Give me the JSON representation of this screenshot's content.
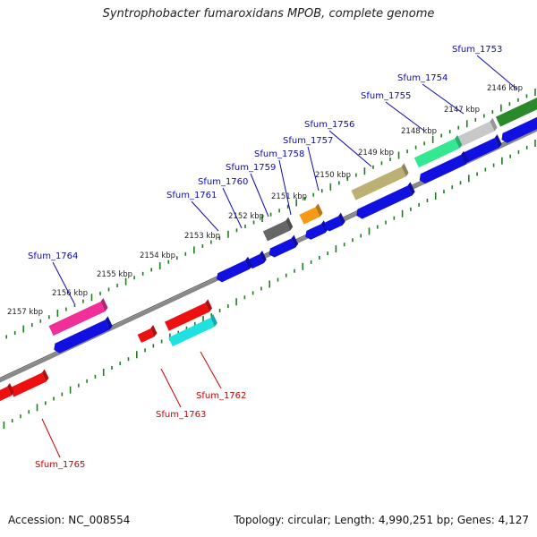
{
  "title": "Syntrophobacter fumaroxidans MPOB, complete genome",
  "footer": {
    "accession": "Accession: NC_008554",
    "summary": "Topology: circular; Length: 4,990,251 bp; Genes: 4,127"
  },
  "colors": {
    "forward_label": "#0a0ab4",
    "reverse_label": "#c80000",
    "tick": "#1e7d1e",
    "backbone": "#888888"
  },
  "scale_labels": [
    "2146 kbp",
    "2147 kbp",
    "2148 kbp",
    "2149 kbp",
    "2150 kbp",
    "2151 kbp",
    "2152 kbp",
    "2153 kbp",
    "2154 kbp",
    "2155 kbp",
    "2156 kbp",
    "2157 kbp"
  ],
  "forward_genes": [
    {
      "name": "Sfum_1753",
      "color": "#2a8a2a"
    },
    {
      "name": "Sfum_1754",
      "color": "#c8c8c8"
    },
    {
      "name": "Sfum_1755",
      "color": "#33e890"
    },
    {
      "name": "Sfum_1756",
      "color": "#bdb074"
    },
    {
      "name": "Sfum_1757",
      "color": "#f49a18"
    },
    {
      "name": "Sfum_1758",
      "color": "#666666"
    },
    {
      "name": "Sfum_1759",
      "color": "#666666"
    },
    {
      "name": "Sfum_1760",
      "color": "#666666"
    },
    {
      "name": "Sfum_1761",
      "color": "#666666"
    },
    {
      "name": "Sfum_1764",
      "color": "#f03098"
    }
  ],
  "reverse_genes": [
    {
      "name": "Sfum_1762",
      "color": "#20e0e0"
    },
    {
      "name": "Sfum_1763",
      "color": "#ee1010"
    },
    {
      "name": "Sfum_1765",
      "color": "#ee1010"
    }
  ]
}
